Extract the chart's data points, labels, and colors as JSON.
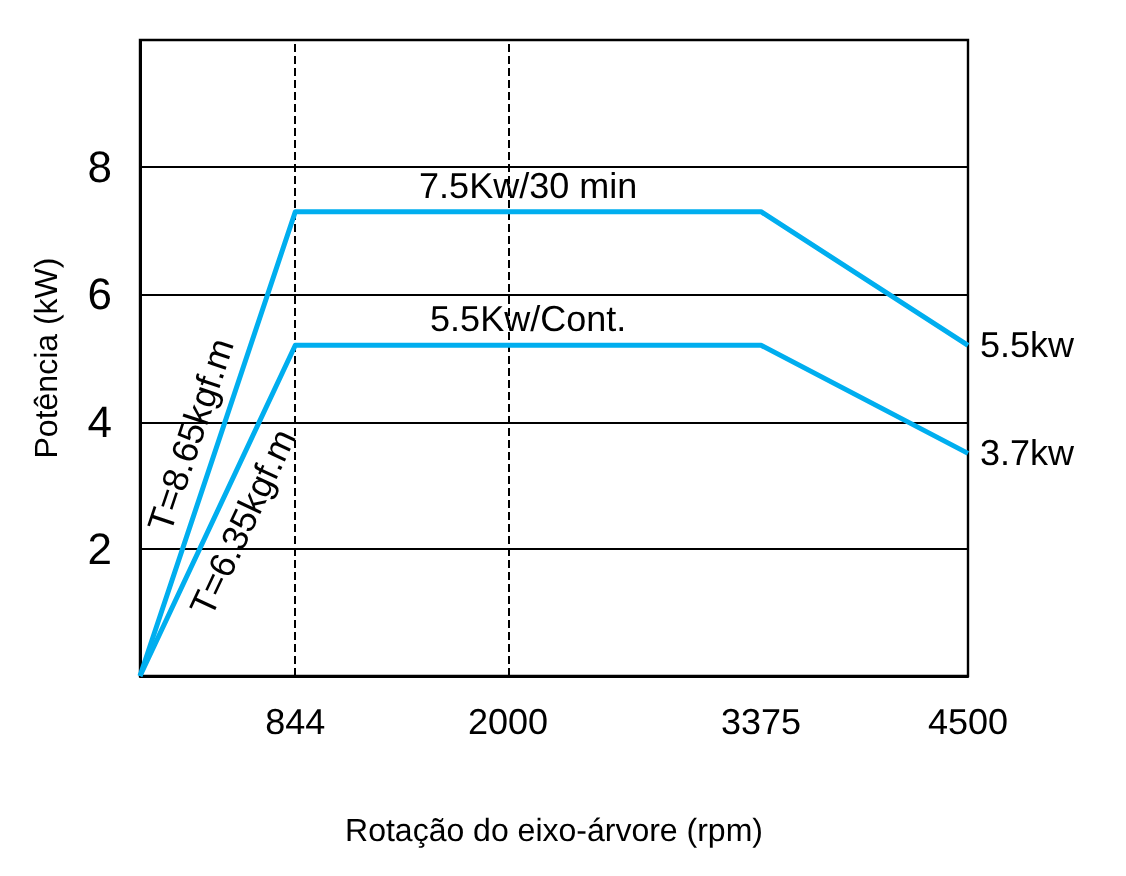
{
  "chart_data": {
    "type": "line",
    "xlabel": "Rotação do eixo-árvore (rpm)",
    "ylabel": "Potência (kW)",
    "x": [
      0,
      844,
      3375,
      4500
    ],
    "series": [
      {
        "name": "7.5Kw/30 min",
        "color": "#00aeef",
        "values": [
          0,
          7.3,
          7.3,
          5.2
        ]
      },
      {
        "name": "5.5Kw/Cont.",
        "color": "#00aeef",
        "values": [
          0,
          5.2,
          5.2,
          3.5
        ]
      }
    ],
    "xlim": [
      0,
      4500
    ],
    "xticks": [
      844,
      2000,
      3375,
      4500
    ],
    "ylim": [
      0,
      10
    ],
    "yticks": [
      2,
      4,
      6,
      8
    ],
    "grid": "y",
    "marker": "none",
    "line_style": "solid",
    "ref_lines": [
      {
        "axis": "x",
        "value": 844,
        "color": "#000000",
        "line_style": "dashed"
      },
      {
        "axis": "x",
        "value": 2000,
        "color": "#000000",
        "line_style": "dashed"
      }
    ],
    "annotations": [
      "T=8.65kgf.m",
      "T=6.35kgf.m",
      {
        "text": "5.5kw",
        "x": 4500,
        "y": 5.2
      },
      {
        "text": "3.7kw",
        "x": 4500,
        "y": 3.5
      }
    ]
  }
}
